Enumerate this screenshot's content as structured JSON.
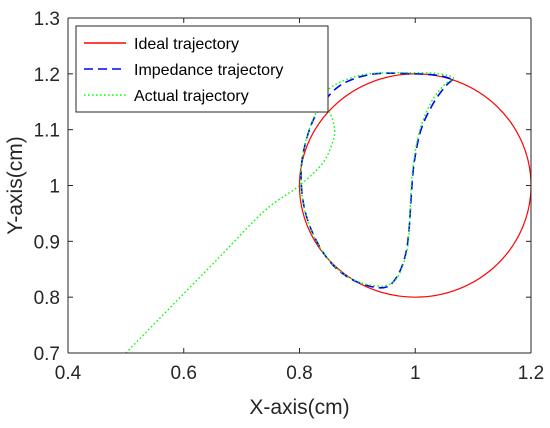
{
  "chart_data": {
    "type": "line",
    "title": "",
    "xlabel": "X-axis(cm)",
    "ylabel": "Y-axis(cm)",
    "xlim": [
      0.4,
      1.2
    ],
    "ylim": [
      0.7,
      1.3
    ],
    "xticks": [
      0.4,
      0.6,
      0.8,
      1,
      1.2
    ],
    "yticks": [
      0.7,
      0.8,
      0.9,
      1,
      1.1,
      1.2,
      1.3
    ],
    "xtick_labels": [
      "0.4",
      "0.6",
      "0.8",
      "1",
      "1.2"
    ],
    "ytick_labels": [
      "0.7",
      "0.8",
      "0.9",
      "1",
      "1.1",
      "1.2",
      "1.3"
    ],
    "grid": false,
    "legend_position": "top-left",
    "series": [
      {
        "name": "Ideal trajectory",
        "color": "#ff0000",
        "style": "solid",
        "shape": "circle",
        "center": [
          1.0,
          1.0
        ],
        "radius": 0.2
      },
      {
        "name": "Impedance trajectory",
        "color": "#0000ff",
        "style": "dashed",
        "points": [
          [
            1.065,
            1.19
          ],
          [
            1.05,
            1.175
          ],
          [
            1.03,
            1.145
          ],
          [
            1.01,
            1.1
          ],
          [
            0.998,
            1.04
          ],
          [
            0.993,
            0.98
          ],
          [
            0.99,
            0.93
          ],
          [
            0.985,
            0.885
          ],
          [
            0.975,
            0.85
          ],
          [
            0.96,
            0.825
          ],
          [
            0.945,
            0.817
          ],
          [
            0.92,
            0.82
          ],
          [
            0.89,
            0.832
          ],
          [
            0.86,
            0.855
          ],
          [
            0.835,
            0.89
          ],
          [
            0.815,
            0.935
          ],
          [
            0.805,
            0.98
          ],
          [
            0.803,
            1.03
          ],
          [
            0.81,
            1.075
          ],
          [
            0.825,
            1.12
          ],
          [
            0.85,
            1.16
          ],
          [
            0.88,
            1.185
          ],
          [
            0.93,
            1.2
          ],
          [
            1.0,
            1.2
          ],
          [
            1.04,
            1.197
          ],
          [
            1.065,
            1.19
          ]
        ]
      },
      {
        "name": "Actual trajectory",
        "color": "#00ff00",
        "style": "dotted",
        "points": [
          [
            0.5,
            0.7
          ],
          [
            0.58,
            0.785
          ],
          [
            0.66,
            0.87
          ],
          [
            0.74,
            0.955
          ],
          [
            0.8,
            1.0
          ],
          [
            0.84,
            1.04
          ],
          [
            0.858,
            1.08
          ],
          [
            0.86,
            1.105
          ],
          [
            0.85,
            1.135
          ],
          [
            0.83,
            1.16
          ],
          [
            0.84,
            1.165
          ],
          [
            0.87,
            1.185
          ],
          [
            0.92,
            1.2
          ],
          [
            1.0,
            1.202
          ],
          [
            1.04,
            1.2
          ],
          [
            1.066,
            1.193
          ],
          [
            1.05,
            1.18
          ],
          [
            1.028,
            1.15
          ],
          [
            1.008,
            1.1
          ],
          [
            0.997,
            1.04
          ],
          [
            0.992,
            0.98
          ],
          [
            0.99,
            0.93
          ],
          [
            0.987,
            0.89
          ],
          [
            0.978,
            0.855
          ],
          [
            0.965,
            0.83
          ],
          [
            0.945,
            0.82
          ],
          [
            0.915,
            0.823
          ],
          [
            0.885,
            0.836
          ],
          [
            0.858,
            0.858
          ],
          [
            0.833,
            0.893
          ],
          [
            0.814,
            0.937
          ],
          [
            0.804,
            0.985
          ],
          [
            0.803,
            1.035
          ],
          [
            0.811,
            1.08
          ],
          [
            0.826,
            1.125
          ],
          [
            0.848,
            1.16
          ]
        ]
      }
    ]
  }
}
